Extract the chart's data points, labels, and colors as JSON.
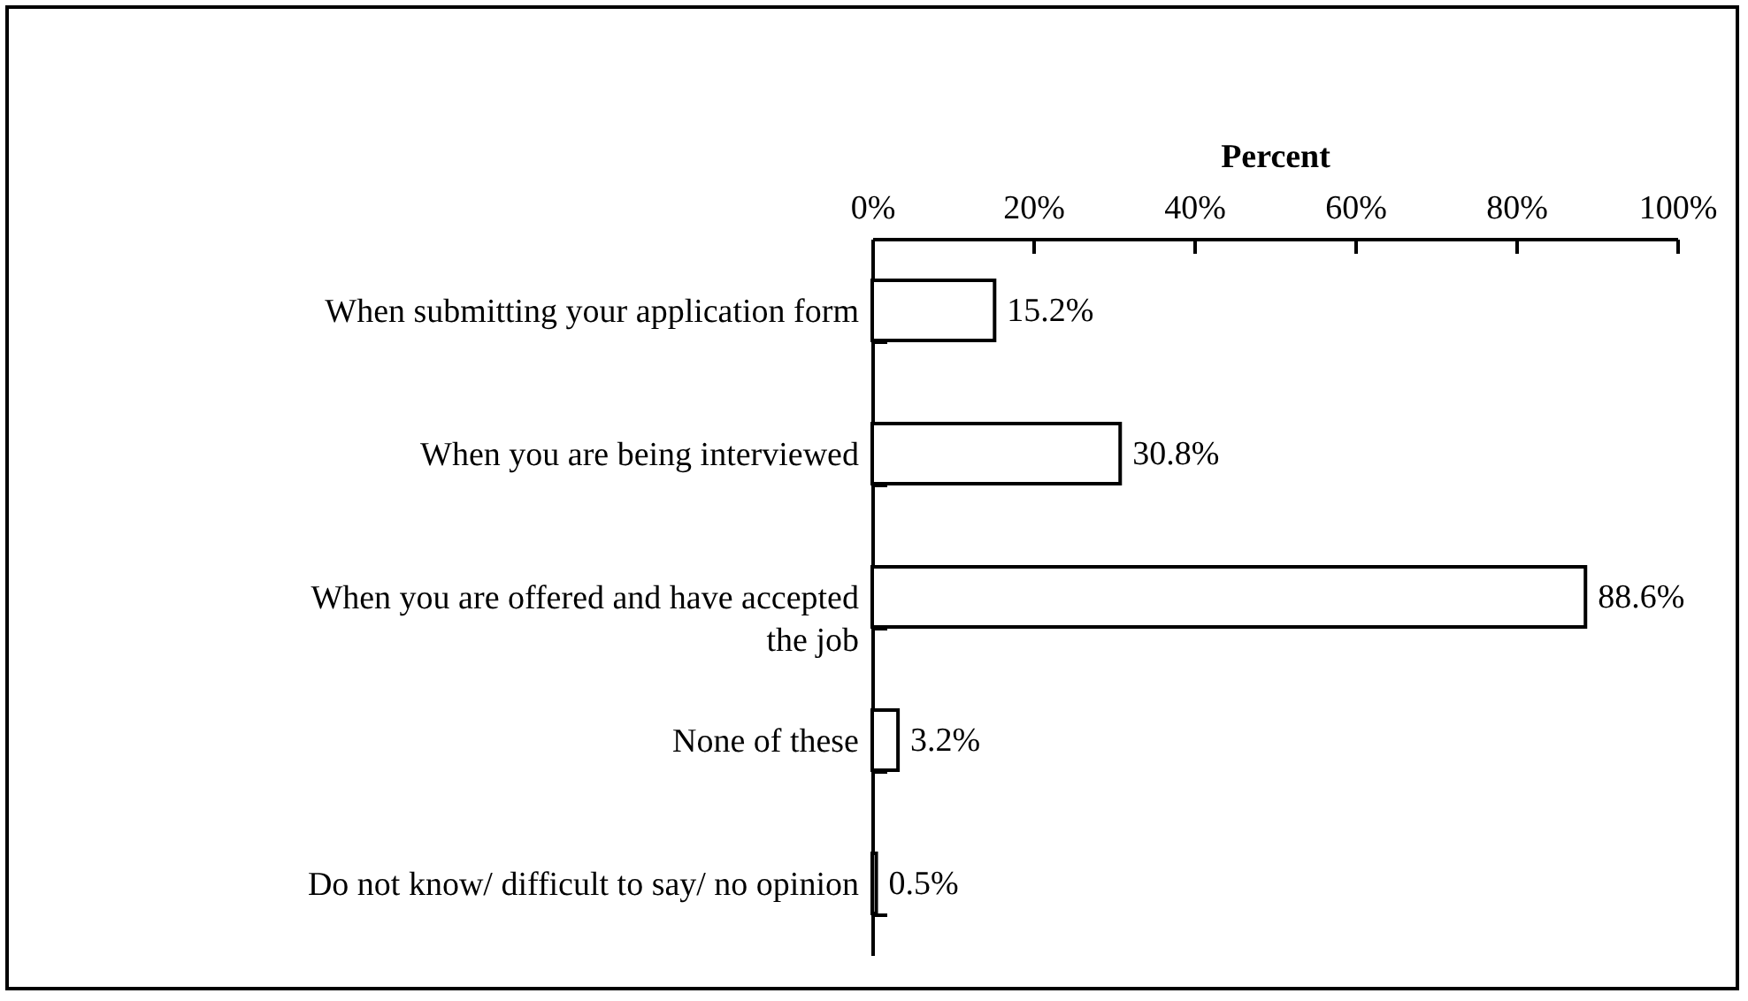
{
  "chart_data": {
    "type": "bar",
    "orientation": "horizontal",
    "xlabel": "Percent",
    "categories": [
      "When submitting your application form",
      "When you are being interviewed",
      "When you are offered and have accepted the job",
      "None of these",
      "Do not know/ difficult to say/ no opinion"
    ],
    "values": [
      15.2,
      30.8,
      88.6,
      3.2,
      0.5
    ],
    "value_labels": [
      "15.2%",
      "30.8%",
      "88.6%",
      "3.2%",
      "0.5%"
    ],
    "color": "#ffffff",
    "xlim": [
      0,
      100
    ],
    "xticks": [
      {
        "value": 0,
        "label": "0%"
      },
      {
        "value": 20,
        "label": "20%"
      },
      {
        "value": 40,
        "label": "40%"
      },
      {
        "value": 60,
        "label": "60%"
      },
      {
        "value": 80,
        "label": "80%"
      },
      {
        "value": 100,
        "label": "100%"
      }
    ]
  }
}
